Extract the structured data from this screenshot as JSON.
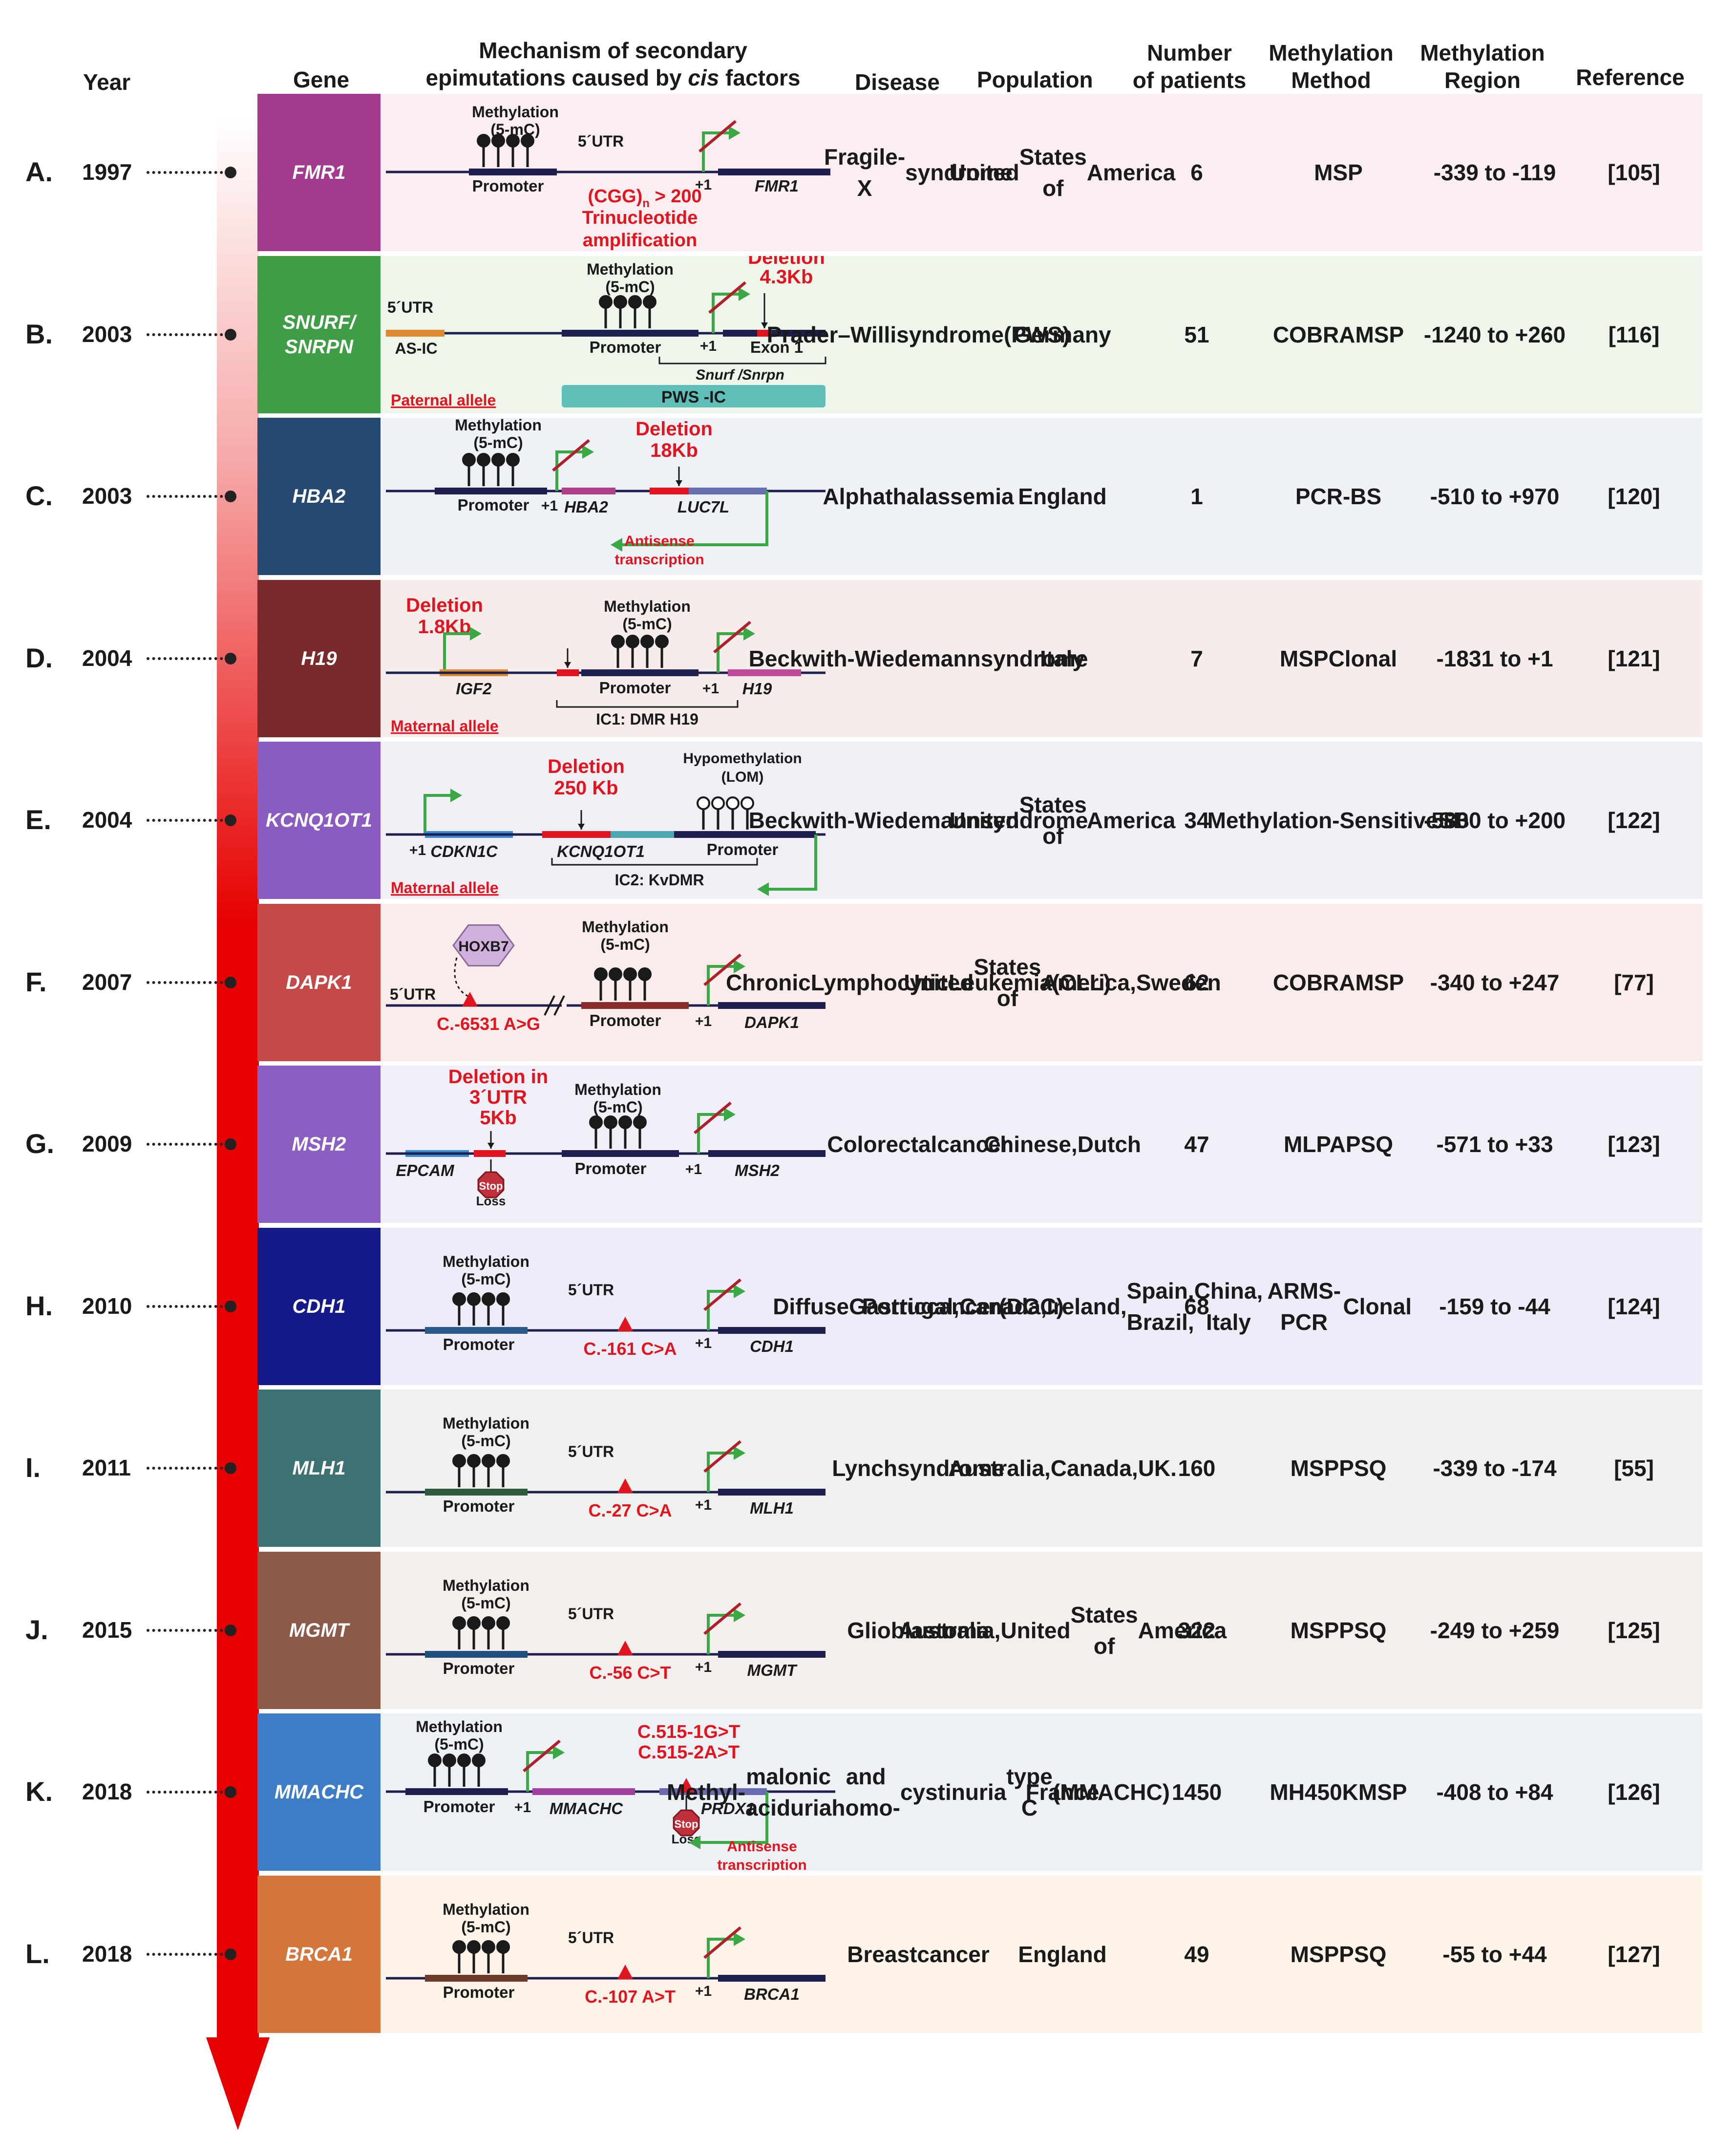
{
  "headers": {
    "year": "Year",
    "gene": "Gene",
    "mechanism_l1": "Mechanism of secondary",
    "mechanism_l2a": "epimutations caused by ",
    "mechanism_l2b": "cis",
    "mechanism_l2c": " factors",
    "disease": "Disease",
    "population": "Population",
    "patients_l1": "Number",
    "patients_l2": "of  patients",
    "method_l1": "Methylation",
    "method_l2": "Method",
    "region_l1": "Methylation",
    "region_l2": "Region",
    "reference": "Reference"
  },
  "colors": {
    "timeline_arrow": "#e60000",
    "green_arrow": "#3aa845",
    "red_slash": "#b0202a",
    "deletion_red": "#e0151f",
    "dna_line": "#1f1f4f"
  },
  "rows": [
    {
      "letter": "A.",
      "year": "1997",
      "gene": "FMR1",
      "gene_color": "#a23a8d",
      "bg": "#fbeef1",
      "disease": [
        "Fragile-X",
        "syndrome"
      ],
      "population": [
        "United",
        "States of",
        "America"
      ],
      "patients": "6",
      "method": [
        "MSP"
      ],
      "region": "-339 to -119",
      "reference": "[105]",
      "mech": {
        "meth_label": [
          "Methylation",
          "(5-mC)"
        ],
        "utr": "5´UTR",
        "promoter": "Promoter",
        "plus1": "+1",
        "gene": "FMR1",
        "note": [
          "(CGG)",
          "n",
          "> 200",
          "Trinucleotide",
          "amplification"
        ]
      }
    },
    {
      "letter": "B.",
      "year": "2003",
      "gene": "SNURF/ SNRPN",
      "gene_color": "#3f9e45",
      "bg": "#eef6ec",
      "disease": [
        "Prader–",
        "Willi",
        "syndrome",
        "(PWS)"
      ],
      "population": [
        "Germany"
      ],
      "patients": "51",
      "method": [
        "COBRA",
        "MSP"
      ],
      "region": "-1240 to +260",
      "reference": "[116]",
      "mech": {
        "utr": "5´UTR",
        "asic": "AS-IC",
        "meth_label": [
          "Methylation",
          "(5-mC)"
        ],
        "deletion": [
          "Deletion",
          "4.3Kb"
        ],
        "promoter": "Promoter",
        "plus1": "+1",
        "exon": "Exon 1",
        "snurf": "Snurf /Snrpn",
        "allele": "Paternal allele",
        "pwsic": "PWS -IC"
      }
    },
    {
      "letter": "C.",
      "year": "2003",
      "gene": "HBA2",
      "gene_color": "#244a72",
      "bg": "#eef1f5",
      "disease": [
        "Alpha",
        "thalassemia"
      ],
      "population": [
        "England"
      ],
      "patients": "1",
      "method": [
        "PCR-BS"
      ],
      "region": "-510 to +970",
      "reference": "[120]",
      "mech": {
        "meth_label": [
          "Methylation",
          "(5-mC)"
        ],
        "deletion": [
          "Deletion",
          "18Kb"
        ],
        "promoter": "Promoter",
        "plus1": "+1",
        "gene": "HBA2",
        "gene2": "LUC7L",
        "antisense": [
          "Antisense",
          "transcription"
        ]
      }
    },
    {
      "letter": "D.",
      "year": "2004",
      "gene": "H19",
      "gene_color": "#7a2a2a",
      "bg": "#f6ecec",
      "disease": [
        "Beckwith-",
        "Wiedemann",
        "syndrome"
      ],
      "population": [
        "Italy"
      ],
      "patients": "7",
      "method": [
        "MSP",
        "Clonal"
      ],
      "region": "-1831 to +1",
      "reference": "[121]",
      "mech": {
        "deletion": [
          "Deletion",
          "1.8Kb"
        ],
        "meth_label": [
          "Methylation",
          "(5-mC)"
        ],
        "igf2": "IGF2",
        "promoter": "Promoter",
        "plus1": "+1",
        "gene": "H19",
        "ic": "IC1: DMR H19",
        "allele": "Maternal allele"
      }
    },
    {
      "letter": "E.",
      "year": "2004",
      "gene": "KCNQ1OT1",
      "gene_color": "#8a5cc0",
      "bg": "#f1eef6",
      "disease": [
        "Beckwith-",
        "Wiedemann",
        "syndrome"
      ],
      "population": [
        "United",
        "States of",
        "America"
      ],
      "patients": "34",
      "method": [
        "Methylation-",
        "Sensitive",
        "SB"
      ],
      "region": "-5800 to +200",
      "reference": "[122]",
      "mech": {
        "deletion": [
          "Deletion",
          "250 Kb"
        ],
        "hypo": [
          "Hypomethylation",
          "(LOM)"
        ],
        "plus1": "+1",
        "cdkn": "CDKN1C",
        "kcnq": "KCNQ1OT1",
        "promoter": "Promoter",
        "ic": "IC2: KvDMR",
        "allele": "Maternal allele"
      }
    },
    {
      "letter": "F.",
      "year": "2007",
      "gene": "DAPK1",
      "gene_color": "#c44a4a",
      "bg": "#fbecec",
      "disease": [
        "Chronic",
        "Lymphocytic",
        "Leukemia",
        "(CLL)"
      ],
      "population": [
        "United",
        "States of",
        "America,",
        "Sweden"
      ],
      "patients": "62",
      "method": [
        "COBRA",
        "MSP"
      ],
      "region": "-340 to +247",
      "reference": "[77]",
      "mech": {
        "hoxb7": "HOXB7",
        "utr": "5´UTR",
        "variant": "C.-6531 A>G",
        "meth_label": [
          "Methylation",
          "(5-mC)"
        ],
        "promoter": "Promoter",
        "plus1": "+1",
        "gene": "DAPK1"
      }
    },
    {
      "letter": "G.",
      "year": "2009",
      "gene": "MSH2",
      "gene_color": "#8b5fc2",
      "bg": "#f0eef6",
      "disease": [
        "Colorectal",
        "cancer"
      ],
      "population": [
        "Chinese,",
        "Dutch"
      ],
      "patients": "47",
      "method": [
        "MLPA",
        "PSQ"
      ],
      "region": "-571 to +33",
      "reference": "[123]",
      "mech": {
        "deletion": [
          "Deletion in",
          "3´UTR",
          "5Kb"
        ],
        "meth_label": [
          "Methylation",
          "(5-mC)"
        ],
        "epcam": "EPCAM",
        "stop": "Stop",
        "loss": "Loss",
        "promoter": "Promoter",
        "plus1": "+1",
        "gene": "MSH2"
      }
    },
    {
      "letter": "H.",
      "year": "2010",
      "gene": "CDH1",
      "gene_color": "#141a8a",
      "bg": "#ecedf8",
      "disease": [
        "Diffuse",
        "Gastric",
        "cancer",
        "(DGC)"
      ],
      "population": [
        "Portugal,",
        "Canada,",
        "Ireland,",
        "Spain, Brazil,",
        "China, Italy"
      ],
      "patients": "68",
      "method": [
        "ARMS-PCR",
        "Clonal"
      ],
      "region": "-159 to -44",
      "reference": "[124]",
      "mech": {
        "meth_label": [
          "Methylation",
          "(5-mC)"
        ],
        "utr": "5´UTR",
        "promoter": "Promoter",
        "variant": "C.-161 C>A",
        "plus1": "+1",
        "gene": "CDH1"
      }
    },
    {
      "letter": "I.",
      "year": "2011",
      "gene": "MLH1",
      "gene_color": "#3d7272",
      "bg": "#eef1ee",
      "disease": [
        "Lynch",
        "syndrome"
      ],
      "population": [
        "Australia,",
        "Canada,",
        "UK."
      ],
      "patients": "160",
      "method": [
        "MSP",
        "PSQ"
      ],
      "region": "-339 to -174",
      "reference": "[55]",
      "mech": {
        "meth_label": [
          "Methylation",
          "(5-mC)"
        ],
        "utr": "5´UTR",
        "promoter": "Promoter",
        "variant": "C.-27 C>A",
        "plus1": "+1",
        "gene": "MLH1"
      }
    },
    {
      "letter": "J.",
      "year": "2015",
      "gene": "MGMT",
      "gene_color": "#8c5a48",
      "bg": "#f4eeec",
      "disease": [
        "Glioblastoma"
      ],
      "population": [
        "Australia,",
        "United",
        "States of",
        "America"
      ],
      "patients": "322",
      "method": [
        "MSP",
        "PSQ"
      ],
      "region": "-249 to +259",
      "reference": "[125]",
      "mech": {
        "meth_label": [
          "Methylation",
          "(5-mC)"
        ],
        "utr": "5´UTR",
        "promoter": "Promoter",
        "variant": "C.-56 C>T",
        "plus1": "+1",
        "gene": "MGMT"
      }
    },
    {
      "letter": "K.",
      "year": "2018",
      "gene": "MMACHC",
      "gene_color": "#3f7cc6",
      "bg": "#edf1f6",
      "disease": [
        "Methyl-",
        "malonic aciduria",
        "and homo-",
        "cystinuria",
        "type C",
        "(MMACHC)"
      ],
      "population": [
        "France"
      ],
      "patients": "1450",
      "method": [
        "MH450K",
        "MSP"
      ],
      "region": "-408 to +84",
      "reference": "[126]",
      "mech": {
        "meth_label": [
          "Methylation",
          "(5-mC)"
        ],
        "variants": [
          "C.515-1G>T",
          "C.515-2A>T"
        ],
        "promoter": "Promoter",
        "plus1": "+1",
        "gene": "MMACHC",
        "gene2": "PRDX1",
        "stop": "Stop",
        "loss": "Loss",
        "antisense": [
          "Antisense",
          "transcription"
        ]
      }
    },
    {
      "letter": "L.",
      "year": "2018",
      "gene": "BRCA1",
      "gene_color": "#d4773c",
      "bg": "#fdf3e8",
      "disease": [
        "Breast",
        "cancer"
      ],
      "population": [
        "England"
      ],
      "patients": "49",
      "method": [
        "MSP",
        "PSQ"
      ],
      "region": "-55 to +44",
      "reference": "[127]",
      "mech": {
        "meth_label": [
          "Methylation",
          "(5-mC)"
        ],
        "utr": "5´UTR",
        "promoter": "Promoter",
        "variant": "C.-107 A>T",
        "plus1": "+1",
        "gene": "BRCA1"
      }
    }
  ]
}
